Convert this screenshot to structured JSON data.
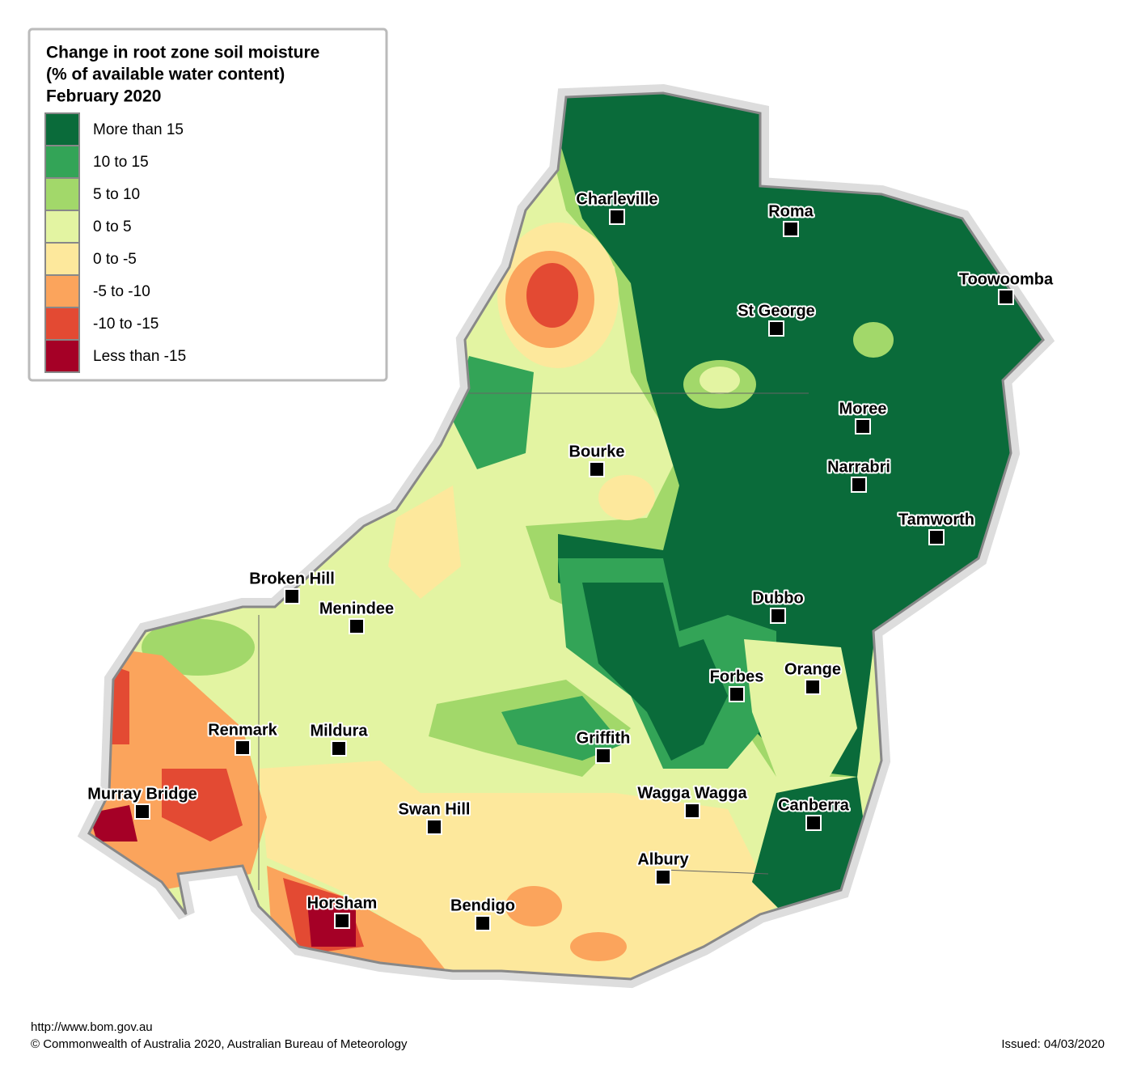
{
  "legend": {
    "title": [
      "Change in root zone soil moisture",
      "(% of available water content)",
      "February 2020"
    ],
    "items": [
      {
        "label": "More than 15",
        "color": "#0a6b3a"
      },
      {
        "label": "10 to 15",
        "color": "#33a457"
      },
      {
        "label": "5 to 10",
        "color": "#a2d86a"
      },
      {
        "label": "0 to 5",
        "color": "#e3f4a2"
      },
      {
        "label": "0 to -5",
        "color": "#fde89c"
      },
      {
        "label": "-5 to -10",
        "color": "#fba45c"
      },
      {
        "label": "-10 to -15",
        "color": "#e34a33"
      },
      {
        "label": "Less than -15",
        "color": "#a50026"
      }
    ]
  },
  "cities": [
    "Charleville",
    "Roma",
    "Toowoomba",
    "St George",
    "Moree",
    "Narrabri",
    "Tamworth",
    "Bourke",
    "Broken Hill",
    "Menindee",
    "Dubbo",
    "Orange",
    "Forbes",
    "Renmark",
    "Mildura",
    "Griffith",
    "Murray Bridge",
    "Wagga Wagga",
    "Canberra",
    "Swan Hill",
    "Albury",
    "Horsham",
    "Bendigo"
  ],
  "footer": {
    "url": "http://www.bom.gov.au",
    "copyright": "© Commonwealth of Australia 2020, Australian Bureau of Meteorology",
    "issued": "Issued: 04/03/2020"
  }
}
